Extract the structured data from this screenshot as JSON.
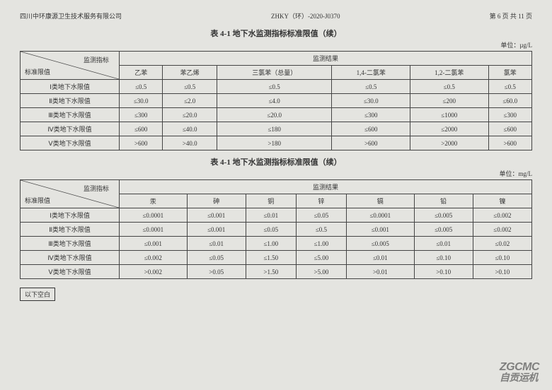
{
  "header": {
    "company": "四川中环康源卫生技术服务有限公司",
    "docno": "ZHKY（环）-2020-J0370",
    "page": "第 6 页 共 11 页"
  },
  "table1": {
    "title": "表 4-1 地下水监测指标标准限值（续）",
    "unit": "单位：µg/L",
    "corner_top": "监测指标",
    "corner_bot": "标准限值",
    "result_header": "监测结果",
    "columns": [
      "乙苯",
      "苯乙烯",
      "三氯苯（总量）",
      "1,4-二氯苯",
      "1,2-二氯苯",
      "氯苯"
    ],
    "rows": [
      {
        "label": "Ⅰ类地下水限值",
        "vals": [
          "≤0.5",
          "≤0.5",
          "≤0.5",
          "≤0.5",
          "≤0.5",
          "≤0.5"
        ]
      },
      {
        "label": "Ⅱ类地下水限值",
        "vals": [
          "≤30.0",
          "≤2.0",
          "≤4.0",
          "≤30.0",
          "≤200",
          "≤60.0"
        ]
      },
      {
        "label": "Ⅲ类地下水限值",
        "vals": [
          "≤300",
          "≤20.0",
          "≤20.0",
          "≤300",
          "≤1000",
          "≤300"
        ]
      },
      {
        "label": "Ⅳ类地下水限值",
        "vals": [
          "≤600",
          "≤40.0",
          "≤180",
          "≤600",
          "≤2000",
          "≤600"
        ]
      },
      {
        "label": "Ⅴ类地下水限值",
        "vals": [
          ">600",
          ">40.0",
          ">180",
          ">600",
          ">2000",
          ">600"
        ]
      }
    ]
  },
  "table2": {
    "title": "表 4-1 地下水监测指标标准限值（续）",
    "unit": "单位：mg/L",
    "corner_top": "监测指标",
    "corner_bot": "标准限值",
    "result_header": "监测结果",
    "columns": [
      "汞",
      "砷",
      "铜",
      "锌",
      "镉",
      "铅",
      "镍"
    ],
    "rows": [
      {
        "label": "Ⅰ类地下水限值",
        "vals": [
          "≤0.0001",
          "≤0.001",
          "≤0.01",
          "≤0.05",
          "≤0.0001",
          "≤0.005",
          "≤0.002"
        ]
      },
      {
        "label": "Ⅱ类地下水限值",
        "vals": [
          "≤0.0001",
          "≤0.001",
          "≤0.05",
          "≤0.5",
          "≤0.001",
          "≤0.005",
          "≤0.002"
        ]
      },
      {
        "label": "Ⅲ类地下水限值",
        "vals": [
          "≤0.001",
          "≤0.01",
          "≤1.00",
          "≤1.00",
          "≤0.005",
          "≤0.01",
          "≤0.02"
        ]
      },
      {
        "label": "Ⅳ类地下水限值",
        "vals": [
          "≤0.002",
          "≤0.05",
          "≤1.50",
          "≤5.00",
          "≤0.01",
          "≤0.10",
          "≤0.10"
        ]
      },
      {
        "label": "Ⅴ类地下水限值",
        "vals": [
          ">0.002",
          ">0.05",
          ">1.50",
          ">5.00",
          ">0.01",
          ">0.10",
          ">0.10"
        ]
      }
    ]
  },
  "blank_below": "以下空白",
  "watermark": {
    "line1": "ZGCMC",
    "line2": "自贡运机"
  }
}
